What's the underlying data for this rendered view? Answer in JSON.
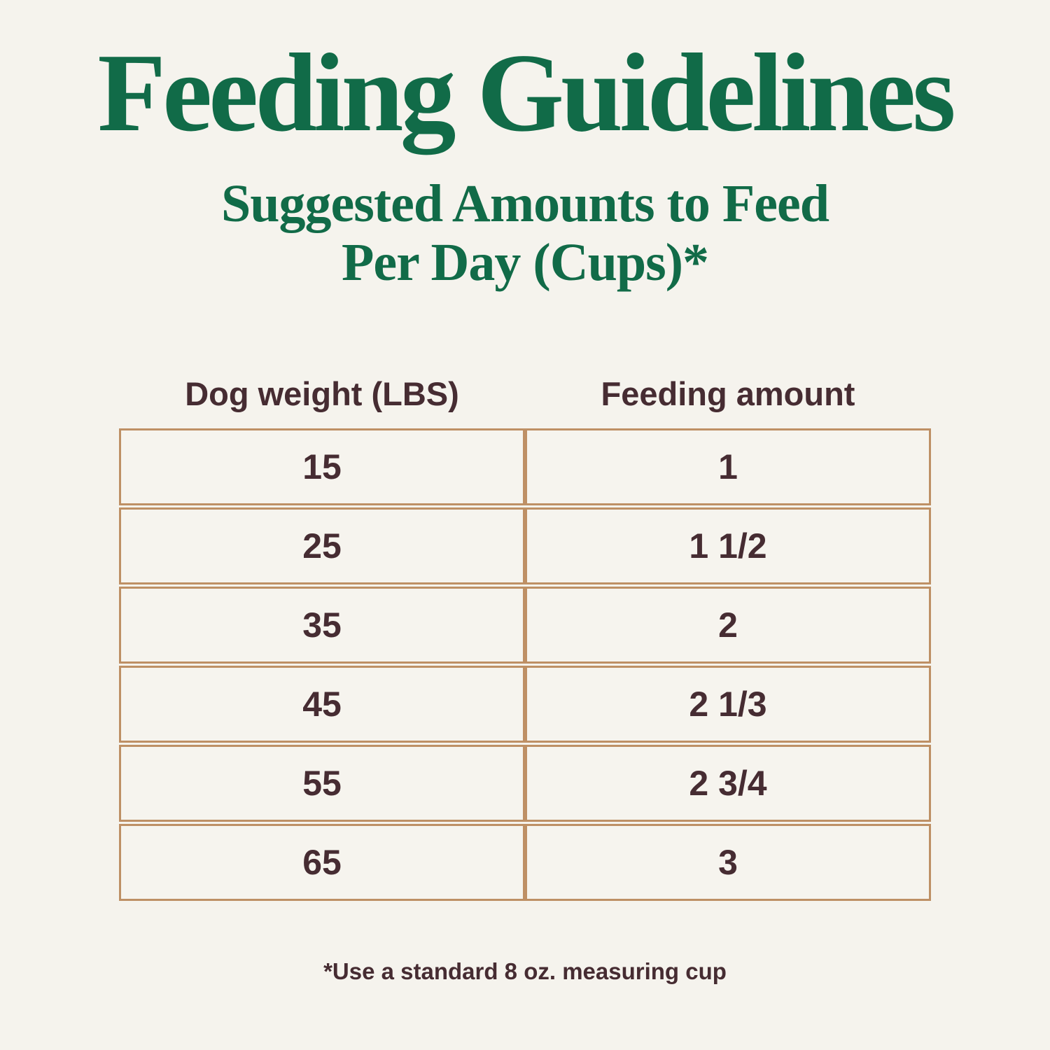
{
  "header": {
    "title": "Feeding Guidelines",
    "subtitle_line1": "Suggested Amounts to Feed",
    "subtitle_line2": "Per Day (Cups)*"
  },
  "table": {
    "columns": [
      "Dog weight (LBS)",
      "Feeding amount"
    ],
    "rows": [
      {
        "weight": "15",
        "amount": "1"
      },
      {
        "weight": "25",
        "amount": "1 1/2"
      },
      {
        "weight": "35",
        "amount": "2"
      },
      {
        "weight": "45",
        "amount": "2 1/3"
      },
      {
        "weight": "55",
        "amount": "2 3/4"
      },
      {
        "weight": "65",
        "amount": "3"
      }
    ]
  },
  "footnote": "*Use a standard 8 oz. measuring cup",
  "colors": {
    "background": "#f5f3ed",
    "title_green": "#116b48",
    "table_border_tan": "#be9065",
    "text_brown": "#462c32"
  },
  "chart_data": {
    "type": "table",
    "title": "Feeding Guidelines",
    "subtitle": "Suggested Amounts to Feed Per Day (Cups)*",
    "columns": [
      "Dog weight (LBS)",
      "Feeding amount"
    ],
    "rows": [
      [
        "15",
        "1"
      ],
      [
        "25",
        "1 1/2"
      ],
      [
        "35",
        "2"
      ],
      [
        "45",
        "2 1/3"
      ],
      [
        "55",
        "2 3/4"
      ],
      [
        "65",
        "3"
      ]
    ],
    "footnote": "*Use a standard 8 oz. measuring cup"
  }
}
